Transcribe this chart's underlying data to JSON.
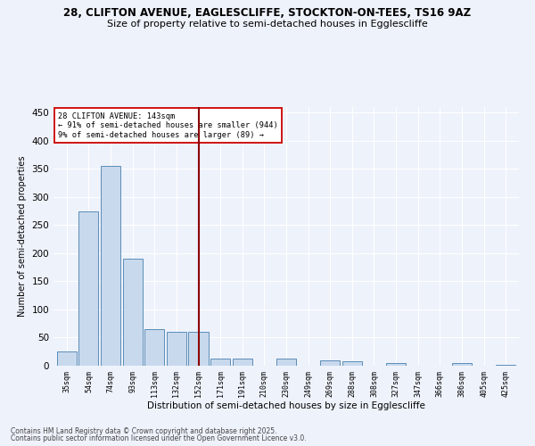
{
  "title1": "28, CLIFTON AVENUE, EAGLESCLIFFE, STOCKTON-ON-TEES, TS16 9AZ",
  "title2": "Size of property relative to semi-detached houses in Egglescliffe",
  "xlabel": "Distribution of semi-detached houses by size in Egglescliffe",
  "ylabel": "Number of semi-detached properties",
  "categories": [
    "35sqm",
    "54sqm",
    "74sqm",
    "93sqm",
    "113sqm",
    "132sqm",
    "152sqm",
    "171sqm",
    "191sqm",
    "210sqm",
    "230sqm",
    "249sqm",
    "269sqm",
    "288sqm",
    "308sqm",
    "327sqm",
    "347sqm",
    "366sqm",
    "386sqm",
    "405sqm",
    "425sqm"
  ],
  "values": [
    25,
    275,
    355,
    190,
    65,
    60,
    60,
    13,
    13,
    0,
    13,
    0,
    10,
    8,
    0,
    4,
    0,
    0,
    5,
    0,
    1
  ],
  "bar_color": "#c9d9ed",
  "bar_edge_color": "#5b8db8",
  "vline_x": 6,
  "vline_color": "#8b0000",
  "annotation_title": "28 CLIFTON AVENUE: 143sqm",
  "annotation_line1": "← 91% of semi-detached houses are smaller (944)",
  "annotation_line2": "9% of semi-detached houses are larger (89) →",
  "annotation_box_color": "#ffffff",
  "annotation_box_edge": "#cc0000",
  "footer1": "Contains HM Land Registry data © Crown copyright and database right 2025.",
  "footer2": "Contains public sector information licensed under the Open Government Licence v3.0.",
  "bg_color": "#eef2fb",
  "ylim": [
    0,
    460
  ],
  "yticks": [
    0,
    50,
    100,
    150,
    200,
    250,
    300,
    350,
    400,
    450
  ]
}
